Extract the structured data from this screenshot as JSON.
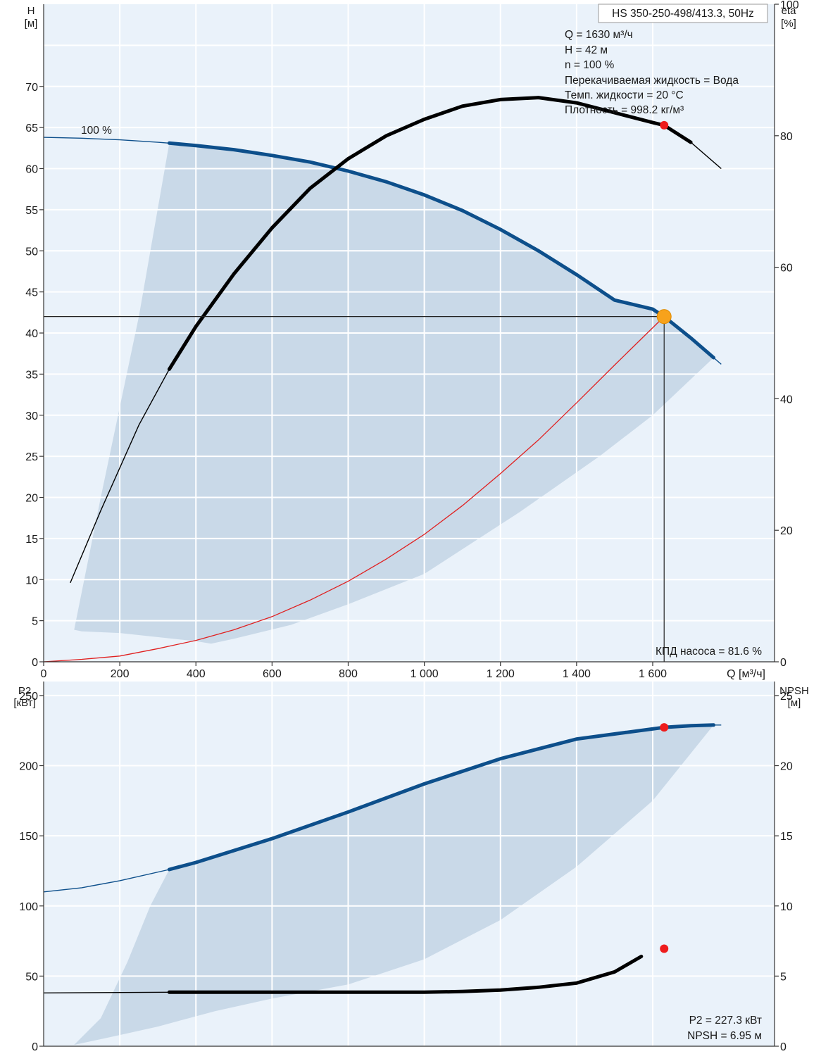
{
  "chart_data": [
    {
      "type": "line",
      "title": "HS 350-250-498/413.3, 50Hz",
      "y_label": "H",
      "y_unit": "[м]",
      "y2_label": "eta",
      "y2_unit": "[%]",
      "x_label": "Q [м³/ч]",
      "xlim": [
        0,
        1920
      ],
      "ylim": [
        0,
        80
      ],
      "y2lim": [
        0,
        100
      ],
      "grid": true,
      "x_tick_labels": [
        "0",
        "200",
        "400",
        "600",
        "800",
        "1 000",
        "1 200",
        "1 400",
        "1 600"
      ],
      "y_tick_labels": [
        "0",
        "5",
        "10",
        "15",
        "20",
        "25",
        "30",
        "35",
        "40",
        "45",
        "50",
        "55",
        "60",
        "65",
        "70"
      ],
      "y2_tick_labels": [
        "0",
        "20",
        "40",
        "60",
        "80",
        "100"
      ],
      "info_lines": [
        "Q = 1630 м³/ч",
        "H = 42 м",
        "n = 100 %",
        "Перекачиваемая жидкость = Вода",
        "Темп. жидкости = 20 °C",
        "Плотность = 998.2 кг/м³"
      ],
      "curve_label": "100 %",
      "footer_label": "КПД насоса = 81.6 %",
      "series": [
        {
          "role": "head",
          "color": "#0d4f8b",
          "x": [
            0,
            100,
            200,
            300,
            330,
            400,
            500,
            600,
            700,
            800,
            900,
            1000,
            1100,
            1200,
            1300,
            1400,
            1500,
            1600,
            1630,
            1700,
            1760,
            1780
          ],
          "y": [
            63.8,
            63.7,
            63.5,
            63.2,
            63.1,
            62.8,
            62.3,
            61.6,
            60.8,
            59.7,
            58.4,
            56.8,
            54.9,
            52.6,
            50.0,
            47.1,
            44.0,
            42.9,
            42.0,
            39.4,
            37.0,
            36.2
          ]
        },
        {
          "role": "efficiency",
          "axis": "y2",
          "color": "#000000",
          "x": [
            70,
            150,
            250,
            330,
            400,
            500,
            600,
            700,
            800,
            900,
            1000,
            1100,
            1200,
            1300,
            1400,
            1500,
            1600,
            1630,
            1700,
            1780
          ],
          "y": [
            12,
            23,
            36,
            44.5,
            51,
            59,
            66,
            72,
            76.5,
            80,
            82.5,
            84.5,
            85.5,
            85.8,
            85,
            83.5,
            82,
            81.6,
            79,
            75
          ]
        },
        {
          "role": "system",
          "color": "#e02020",
          "x": [
            0,
            100,
            200,
            300,
            400,
            500,
            600,
            700,
            800,
            900,
            1000,
            1100,
            1200,
            1300,
            1400,
            1500,
            1630
          ],
          "y": [
            0,
            0.3,
            0.7,
            1.6,
            2.6,
            3.9,
            5.5,
            7.5,
            9.8,
            12.5,
            15.5,
            19.0,
            22.9,
            27.0,
            31.5,
            36.1,
            42.0
          ]
        }
      ],
      "region": {
        "upper_x": [
          330,
          400,
          500,
          600,
          700,
          800,
          900,
          1000,
          1100,
          1200,
          1300,
          1400,
          1500,
          1600,
          1700,
          1760
        ],
        "upper_y": [
          63.1,
          62.8,
          62.3,
          61.6,
          60.8,
          59.7,
          58.4,
          56.8,
          54.9,
          52.6,
          50.0,
          47.1,
          44.0,
          42.9,
          39.4,
          37.0
        ],
        "lower_x": [
          1760,
          1600,
          1460,
          1250,
          1000,
          800,
          650,
          500,
          440,
          400,
          200,
          100,
          80,
          150,
          250,
          330
        ],
        "lower_y": [
          37.0,
          30.0,
          25.0,
          18.2,
          10.7,
          7.0,
          4.5,
          2.8,
          2.2,
          2.5,
          3.5,
          3.7,
          3.9,
          20.0,
          42.0,
          63.1
        ]
      },
      "duty_point": {
        "x": 1630,
        "y": 42.0,
        "color": "#f7a21b"
      },
      "efficiency_point": {
        "x": 1630,
        "y2": 81.6,
        "color": "#ee1c1c"
      }
    },
    {
      "type": "line",
      "y_label": "P2",
      "y_unit": "[кВт]",
      "y2_label": "NPSH",
      "y2_unit": "[м]",
      "xlim": [
        0,
        1920
      ],
      "ylim": [
        0,
        260
      ],
      "y2lim": [
        0,
        26
      ],
      "grid": true,
      "y_tick_labels": [
        "0",
        "50",
        "100",
        "150",
        "200",
        "250"
      ],
      "y2_tick_labels": [
        "0",
        "5",
        "10",
        "15",
        "20",
        "25"
      ],
      "footer_lines": [
        "P2 = 227.3 кВт",
        "NPSH = 6.95 м"
      ],
      "series": [
        {
          "role": "power",
          "color": "#0d4f8b",
          "x": [
            0,
            100,
            200,
            330,
            400,
            600,
            800,
            1000,
            1200,
            1400,
            1630,
            1700,
            1760,
            1780
          ],
          "y": [
            110,
            113,
            118,
            126,
            131,
            148,
            167,
            187,
            205,
            219,
            227.3,
            228.5,
            229,
            229
          ]
        },
        {
          "role": "npsh",
          "axis": "y2",
          "color": "#000000",
          "x": [
            0,
            330,
            500,
            700,
            900,
            1000,
            1100,
            1200,
            1300,
            1400,
            1500,
            1570
          ],
          "y": [
            3.8,
            3.85,
            3.85,
            3.85,
            3.85,
            3.85,
            3.9,
            4.0,
            4.2,
            4.5,
            5.3,
            6.4
          ]
        }
      ],
      "region": {
        "upper_x": [
          330,
          400,
          600,
          800,
          1000,
          1200,
          1400,
          1630,
          1760
        ],
        "upper_y": [
          126,
          131,
          148,
          167,
          187,
          205,
          219,
          227.3,
          229
        ],
        "lower_x": [
          1760,
          1600,
          1400,
          1200,
          1000,
          800,
          600,
          450,
          300,
          200,
          150,
          80,
          150,
          220,
          280,
          330
        ],
        "lower_y": [
          229,
          175,
          128,
          90,
          62,
          44,
          34,
          25,
          14,
          8,
          5,
          1,
          20,
          60,
          100,
          126
        ]
      },
      "power_point": {
        "x": 1630,
        "y": 227.3,
        "color": "#ee1c1c"
      },
      "npsh_point": {
        "x": 1630,
        "y2": 6.95,
        "color": "#ee1c1c"
      }
    }
  ]
}
